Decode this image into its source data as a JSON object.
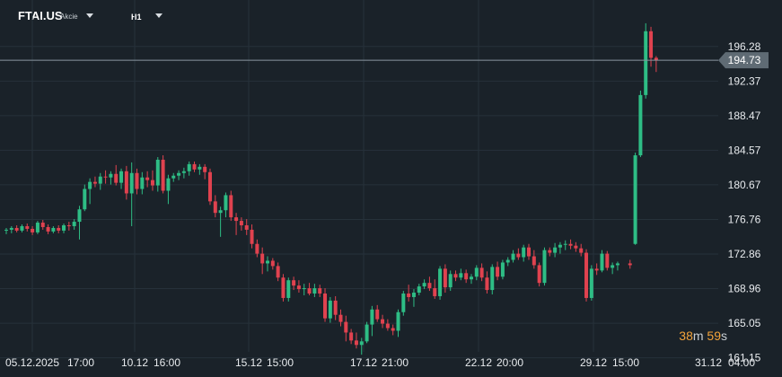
{
  "header": {
    "symbol": "FTAI.US",
    "symbol_type": "Akcie",
    "timeframe": "H1"
  },
  "countdown": {
    "minutes": "38",
    "minutes_unit": "m",
    "seconds": "59",
    "seconds_unit": "s"
  },
  "current_price_label": "194.73",
  "colors": {
    "up": "#2ebd85",
    "down": "#e0424f",
    "background": "#1a2229",
    "grid": "#26313a",
    "price_line": "#8a96a0"
  },
  "chart_data": {
    "type": "candlestick",
    "title": "",
    "ylim": [
      160.5,
      199.5
    ],
    "y_ticks": [
      "196.28",
      "192.37",
      "188.47",
      "184.57",
      "180.67",
      "176.76",
      "172.86",
      "168.96",
      "165.05",
      "161.15"
    ],
    "x_ticks": [
      "05.12.2025",
      "17:00",
      "10.12",
      "16:00",
      "15.12",
      "15:00",
      "17.12",
      "21:00",
      "22.12",
      "20:00",
      "29.12",
      "15:00",
      "31.12",
      "04:00"
    ],
    "current_price": 194.73,
    "candles": [
      [
        175.5,
        175.8,
        175.1,
        175.6
      ],
      [
        175.6,
        176.0,
        175.2,
        175.8
      ],
      [
        175.8,
        176.1,
        175.3,
        175.5
      ],
      [
        175.5,
        176.2,
        175.3,
        176.0
      ],
      [
        176.0,
        176.3,
        175.4,
        175.7
      ],
      [
        175.7,
        176.0,
        175.0,
        175.3
      ],
      [
        175.3,
        176.6,
        175.1,
        176.4
      ],
      [
        176.4,
        176.7,
        175.6,
        175.9
      ],
      [
        175.9,
        176.2,
        175.1,
        175.4
      ],
      [
        175.4,
        176.0,
        175.2,
        175.8
      ],
      [
        175.8,
        176.1,
        175.2,
        175.5
      ],
      [
        175.5,
        176.3,
        175.2,
        176.1
      ],
      [
        176.1,
        176.5,
        175.5,
        176.0
      ],
      [
        176.0,
        176.8,
        175.6,
        176.5
      ],
      [
        176.5,
        178.3,
        174.5,
        177.9
      ],
      [
        177.9,
        180.7,
        177.7,
        180.2
      ],
      [
        180.2,
        181.4,
        178.5,
        181.0
      ],
      [
        181.0,
        181.6,
        180.4,
        180.8
      ],
      [
        180.8,
        182.0,
        180.1,
        181.6
      ],
      [
        181.6,
        182.3,
        180.8,
        181.5
      ],
      [
        181.5,
        182.2,
        180.7,
        181.9
      ],
      [
        181.9,
        182.9,
        180.6,
        180.9
      ],
      [
        180.9,
        182.5,
        180.2,
        182.2
      ],
      [
        182.2,
        182.8,
        179.0,
        179.7
      ],
      [
        179.7,
        183.2,
        176.0,
        182.0
      ],
      [
        182.0,
        182.5,
        179.6,
        180.2
      ],
      [
        180.2,
        182.1,
        179.6,
        181.5
      ],
      [
        181.5,
        182.2,
        180.4,
        181.2
      ],
      [
        181.2,
        182.3,
        180.0,
        180.6
      ],
      [
        180.6,
        183.8,
        179.9,
        183.5
      ],
      [
        183.5,
        184.0,
        179.7,
        180.0
      ],
      [
        180.0,
        181.8,
        178.5,
        181.4
      ],
      [
        181.4,
        182.0,
        181.0,
        181.7
      ],
      [
        181.7,
        182.3,
        181.2,
        182.0
      ],
      [
        182.0,
        182.6,
        181.4,
        182.2
      ],
      [
        182.2,
        183.3,
        181.7,
        183.0
      ],
      [
        183.0,
        183.3,
        182.1,
        182.4
      ],
      [
        182.4,
        183.0,
        181.8,
        182.7
      ],
      [
        182.7,
        183.0,
        181.3,
        182.1
      ],
      [
        182.1,
        182.5,
        178.4,
        178.8
      ],
      [
        178.8,
        179.5,
        177.0,
        177.5
      ],
      [
        177.5,
        178.2,
        174.8,
        177.8
      ],
      [
        177.8,
        179.8,
        177.0,
        179.5
      ],
      [
        179.5,
        180.0,
        176.6,
        177.0
      ],
      [
        177.0,
        177.5,
        175.0,
        176.6
      ],
      [
        176.6,
        177.0,
        175.5,
        176.1
      ],
      [
        176.1,
        176.8,
        175.0,
        175.6
      ],
      [
        175.6,
        176.2,
        173.5,
        174.0
      ],
      [
        174.0,
        174.5,
        172.5,
        172.9
      ],
      [
        172.9,
        173.6,
        170.6,
        171.8
      ],
      [
        171.8,
        172.6,
        170.9,
        172.1
      ],
      [
        172.1,
        172.4,
        171.1,
        171.5
      ],
      [
        171.5,
        171.9,
        169.8,
        170.2
      ],
      [
        170.2,
        170.6,
        167.5,
        167.9
      ],
      [
        167.9,
        170.2,
        167.5,
        169.9
      ],
      [
        169.9,
        170.3,
        168.8,
        169.3
      ],
      [
        169.3,
        169.9,
        168.5,
        168.9
      ],
      [
        168.9,
        169.5,
        168.2,
        169.0
      ],
      [
        169.0,
        169.6,
        168.2,
        168.4
      ],
      [
        168.4,
        169.5,
        168.0,
        169.0
      ],
      [
        169.0,
        169.4,
        168.0,
        168.4
      ],
      [
        168.4,
        169.0,
        165.2,
        165.6
      ],
      [
        165.6,
        168.0,
        165.1,
        167.6
      ],
      [
        167.6,
        168.1,
        165.4,
        166.0
      ],
      [
        166.0,
        166.6,
        164.7,
        165.2
      ],
      [
        165.2,
        165.9,
        163.0,
        164.0
      ],
      [
        164.0,
        164.4,
        162.7,
        163.1
      ],
      [
        163.1,
        164.0,
        162.2,
        162.6
      ],
      [
        162.6,
        163.4,
        161.5,
        163.0
      ],
      [
        163.0,
        165.2,
        162.8,
        164.9
      ],
      [
        164.9,
        167.0,
        163.6,
        166.6
      ],
      [
        166.6,
        167.1,
        165.2,
        165.5
      ],
      [
        165.5,
        166.0,
        164.5,
        165.0
      ],
      [
        165.0,
        165.5,
        164.2,
        164.5
      ],
      [
        164.5,
        164.9,
        163.7,
        164.2
      ],
      [
        164.2,
        166.6,
        163.5,
        166.3
      ],
      [
        166.3,
        168.7,
        165.9,
        168.4
      ],
      [
        168.4,
        169.4,
        167.5,
        168.0
      ],
      [
        168.0,
        168.9,
        166.9,
        168.5
      ],
      [
        168.5,
        169.5,
        168.2,
        169.2
      ],
      [
        169.2,
        170.0,
        168.9,
        169.6
      ],
      [
        169.6,
        170.3,
        168.7,
        169.0
      ],
      [
        169.0,
        170.0,
        167.8,
        168.1
      ],
      [
        168.1,
        171.5,
        167.7,
        171.2
      ],
      [
        171.2,
        171.7,
        168.5,
        169.1
      ],
      [
        169.1,
        171.0,
        168.7,
        170.6
      ],
      [
        170.6,
        171.0,
        169.8,
        170.2
      ],
      [
        170.2,
        171.2,
        169.9,
        170.7
      ],
      [
        170.7,
        171.1,
        169.6,
        170.0
      ],
      [
        170.0,
        170.6,
        169.5,
        170.3
      ],
      [
        170.3,
        171.6,
        169.9,
        171.3
      ],
      [
        171.3,
        171.8,
        169.8,
        170.2
      ],
      [
        170.2,
        170.9,
        168.4,
        168.8
      ],
      [
        168.8,
        171.7,
        168.3,
        171.4
      ],
      [
        171.4,
        172.0,
        169.9,
        170.3
      ],
      [
        170.3,
        172.2,
        170.0,
        171.9
      ],
      [
        171.9,
        172.5,
        171.5,
        172.2
      ],
      [
        172.2,
        173.3,
        171.9,
        172.9
      ],
      [
        172.9,
        173.5,
        172.2,
        172.5
      ],
      [
        172.5,
        173.9,
        172.0,
        173.6
      ],
      [
        173.6,
        174.0,
        172.2,
        172.6
      ],
      [
        172.6,
        173.3,
        171.2,
        171.6
      ],
      [
        171.6,
        171.9,
        169.2,
        169.6
      ],
      [
        169.6,
        173.6,
        169.3,
        173.3
      ],
      [
        173.3,
        173.6,
        172.6,
        173.0
      ],
      [
        173.0,
        174.1,
        172.5,
        173.6
      ],
      [
        173.6,
        174.2,
        172.9,
        173.9
      ],
      [
        173.9,
        174.4,
        173.3,
        174.0
      ],
      [
        174.0,
        174.5,
        173.4,
        173.8
      ],
      [
        173.8,
        174.2,
        173.1,
        173.5
      ],
      [
        173.5,
        174.0,
        172.6,
        173.0
      ],
      [
        173.0,
        173.4,
        167.5,
        167.9
      ],
      [
        167.9,
        171.6,
        167.6,
        171.2
      ],
      [
        171.2,
        171.8,
        170.5,
        171.0
      ],
      [
        171.0,
        173.3,
        170.8,
        172.9
      ],
      [
        172.9,
        173.2,
        171.0,
        171.3
      ],
      [
        171.3,
        171.9,
        170.6,
        171.6
      ],
      [
        171.6,
        172.0,
        171.0,
        171.8
      ],
      [
        171.8,
        172.2,
        171.2,
        171.6
      ],
      [
        174.0,
        184.3,
        173.9,
        184.0
      ],
      [
        184.0,
        191.3,
        183.8,
        190.8
      ],
      [
        190.8,
        198.9,
        190.4,
        198.0
      ],
      [
        198.0,
        198.5,
        194.0,
        195.0
      ],
      [
        195.0,
        195.2,
        193.4,
        194.73
      ]
    ],
    "gap_after_index": 117
  }
}
